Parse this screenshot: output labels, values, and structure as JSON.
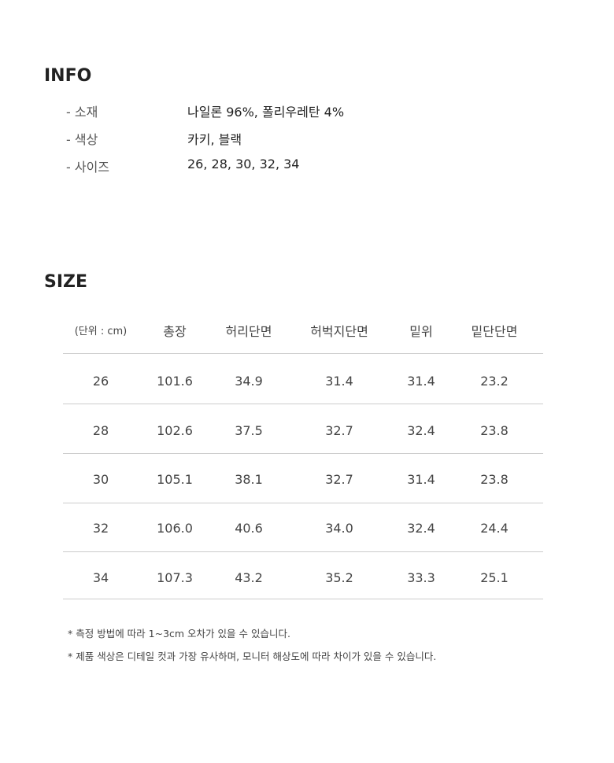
{
  "info": {
    "title": "INFO",
    "rows": [
      {
        "label": "- 소재",
        "value": "나일론 96%, 폴리우레탄 4%"
      },
      {
        "label": "- 색상",
        "value": "카키, 블랙"
      },
      {
        "label": "- 사이즈",
        "value": "26, 28, 30, 32, 34"
      }
    ]
  },
  "size": {
    "title": "SIZE",
    "headers": [
      "(단위 : cm)",
      "총장",
      "허리단면",
      "허벅지단면",
      "밑위",
      "밑단단면"
    ],
    "rows": [
      [
        "26",
        "101.6",
        "34.9",
        "31.4",
        "31.4",
        "23.2"
      ],
      [
        "28",
        "102.6",
        "37.5",
        "32.7",
        "32.4",
        "23.8"
      ],
      [
        "30",
        "105.1",
        "38.1",
        "32.7",
        "31.4",
        "23.8"
      ],
      [
        "32",
        "106.0",
        "40.6",
        "34.0",
        "32.4",
        "24.4"
      ],
      [
        "34",
        "107.3",
        "43.2",
        "35.2",
        "33.3",
        "25.1"
      ]
    ]
  },
  "notes": [
    "* 측정 방법에 따라 1~3cm 오차가 있을 수 있습니다.",
    "* 제품 색상은 디테일 컷과 가장 유사하며, 모니터 해상도에 따라 차이가 있을 수 있습니다."
  ]
}
